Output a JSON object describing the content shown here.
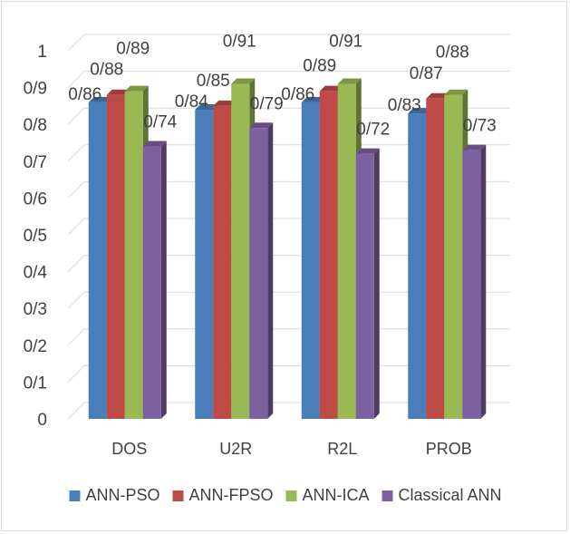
{
  "chart_data": {
    "type": "bar",
    "style": "3d-clustered-column",
    "title": "",
    "xlabel": "",
    "ylabel": "",
    "ylim": [
      0,
      1
    ],
    "y_ticks": [
      0,
      0.1,
      0.2,
      0.3,
      0.4,
      0.5,
      0.6,
      0.7,
      0.8,
      0.9,
      1
    ],
    "y_tick_labels": [
      "0",
      "0/1",
      "0/2",
      "0/3",
      "0/4",
      "0/5",
      "0/6",
      "0/7",
      "0/8",
      "0/9",
      "1"
    ],
    "grid": true,
    "legend_position": "bottom",
    "categories": [
      "DOS",
      "U2R",
      "R2L",
      "PROB"
    ],
    "series": [
      {
        "name": "ANN-PSO",
        "color": "#4a7ebb",
        "values": [
          0.86,
          0.84,
          0.86,
          0.83
        ],
        "labels": [
          "0/86",
          "0/84",
          "0/86",
          "0/83"
        ]
      },
      {
        "name": "ANN-FPSO",
        "color": "#be4b48",
        "values": [
          0.88,
          0.85,
          0.89,
          0.87
        ],
        "labels": [
          "0/88",
          "0/85",
          "0/89",
          "0/87"
        ]
      },
      {
        "name": "ANN-ICA",
        "color": "#98b954",
        "values": [
          0.89,
          0.91,
          0.91,
          0.88
        ],
        "labels": [
          "0/89",
          "0/91",
          "0/91",
          "0/88"
        ]
      },
      {
        "name": "Classical ANN",
        "color": "#7d60a0",
        "values": [
          0.74,
          0.79,
          0.72,
          0.73
        ],
        "labels": [
          "0/74",
          "0/79",
          "0/72",
          "0/73"
        ]
      }
    ]
  }
}
